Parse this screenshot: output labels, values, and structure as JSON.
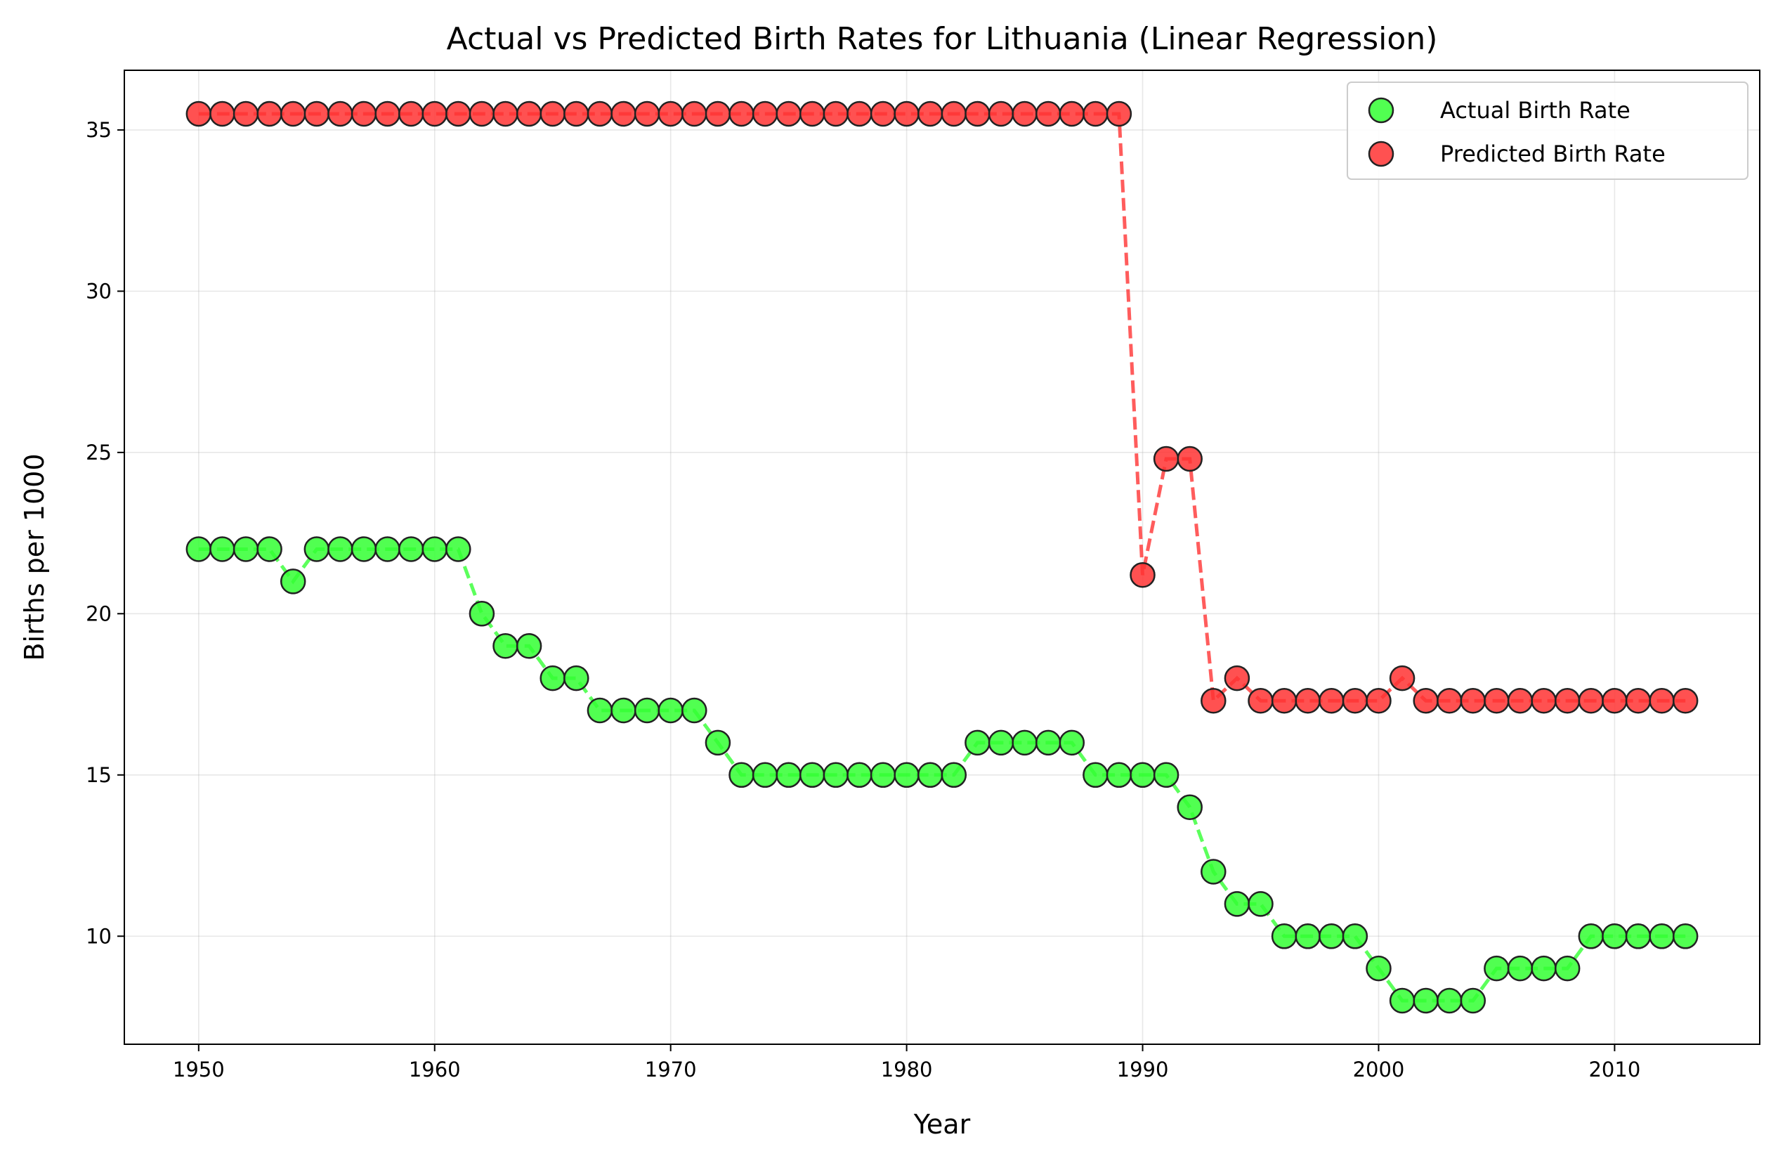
{
  "chart_data": {
    "type": "line",
    "title": "Actual vs Predicted Birth Rates for Lithuania (Linear Regression)",
    "xlabel": "Year",
    "ylabel": "Births per 1000",
    "xlim": [
      1946.85,
      2016.15
    ],
    "ylim": [
      6.65,
      36.85
    ],
    "xticks": [
      1950,
      1960,
      1970,
      1980,
      1990,
      2000,
      2010
    ],
    "yticks": [
      10,
      15,
      20,
      25,
      30,
      35
    ],
    "grid": true,
    "legend_position": "top-right",
    "x": [
      1950,
      1951,
      1952,
      1953,
      1954,
      1955,
      1956,
      1957,
      1958,
      1959,
      1960,
      1961,
      1962,
      1963,
      1964,
      1965,
      1966,
      1967,
      1968,
      1969,
      1970,
      1971,
      1972,
      1973,
      1974,
      1975,
      1976,
      1977,
      1978,
      1979,
      1980,
      1981,
      1982,
      1983,
      1984,
      1985,
      1986,
      1987,
      1988,
      1989,
      1990,
      1991,
      1992,
      1993,
      1994,
      1995,
      1996,
      1997,
      1998,
      1999,
      2000,
      2001,
      2002,
      2003,
      2004,
      2005,
      2006,
      2007,
      2008,
      2009,
      2010,
      2011,
      2012,
      2013
    ],
    "series": [
      {
        "name": "Actual Birth Rate",
        "color": "#33ff33",
        "values": [
          22,
          22,
          22,
          22,
          21,
          22,
          22,
          22,
          22,
          22,
          22,
          22,
          20,
          19,
          19,
          18,
          18,
          17,
          17,
          17,
          17,
          17,
          16,
          15,
          15,
          15,
          15,
          15,
          15,
          15,
          15,
          15,
          15,
          16,
          16,
          16,
          16,
          16,
          15,
          15,
          15,
          15,
          14,
          12,
          11,
          11,
          10,
          10,
          10,
          10,
          9,
          8,
          8,
          8,
          8,
          9,
          9,
          9,
          9,
          10,
          10,
          10,
          10,
          10
        ]
      },
      {
        "name": "Predicted Birth Rate",
        "color": "#ff3333",
        "values": [
          35.5,
          35.5,
          35.5,
          35.5,
          35.5,
          35.5,
          35.5,
          35.5,
          35.5,
          35.5,
          35.5,
          35.5,
          35.5,
          35.5,
          35.5,
          35.5,
          35.5,
          35.5,
          35.5,
          35.5,
          35.5,
          35.5,
          35.5,
          35.5,
          35.5,
          35.5,
          35.5,
          35.5,
          35.5,
          35.5,
          35.5,
          35.5,
          35.5,
          35.5,
          35.5,
          35.5,
          35.5,
          35.5,
          35.5,
          35.5,
          21.2,
          24.8,
          24.8,
          17.3,
          18.0,
          17.3,
          17.3,
          17.3,
          17.3,
          17.3,
          17.3,
          18.0,
          17.3,
          17.3,
          17.3,
          17.3,
          17.3,
          17.3,
          17.3,
          17.3,
          17.3,
          17.3,
          17.3,
          17.3
        ]
      }
    ]
  }
}
